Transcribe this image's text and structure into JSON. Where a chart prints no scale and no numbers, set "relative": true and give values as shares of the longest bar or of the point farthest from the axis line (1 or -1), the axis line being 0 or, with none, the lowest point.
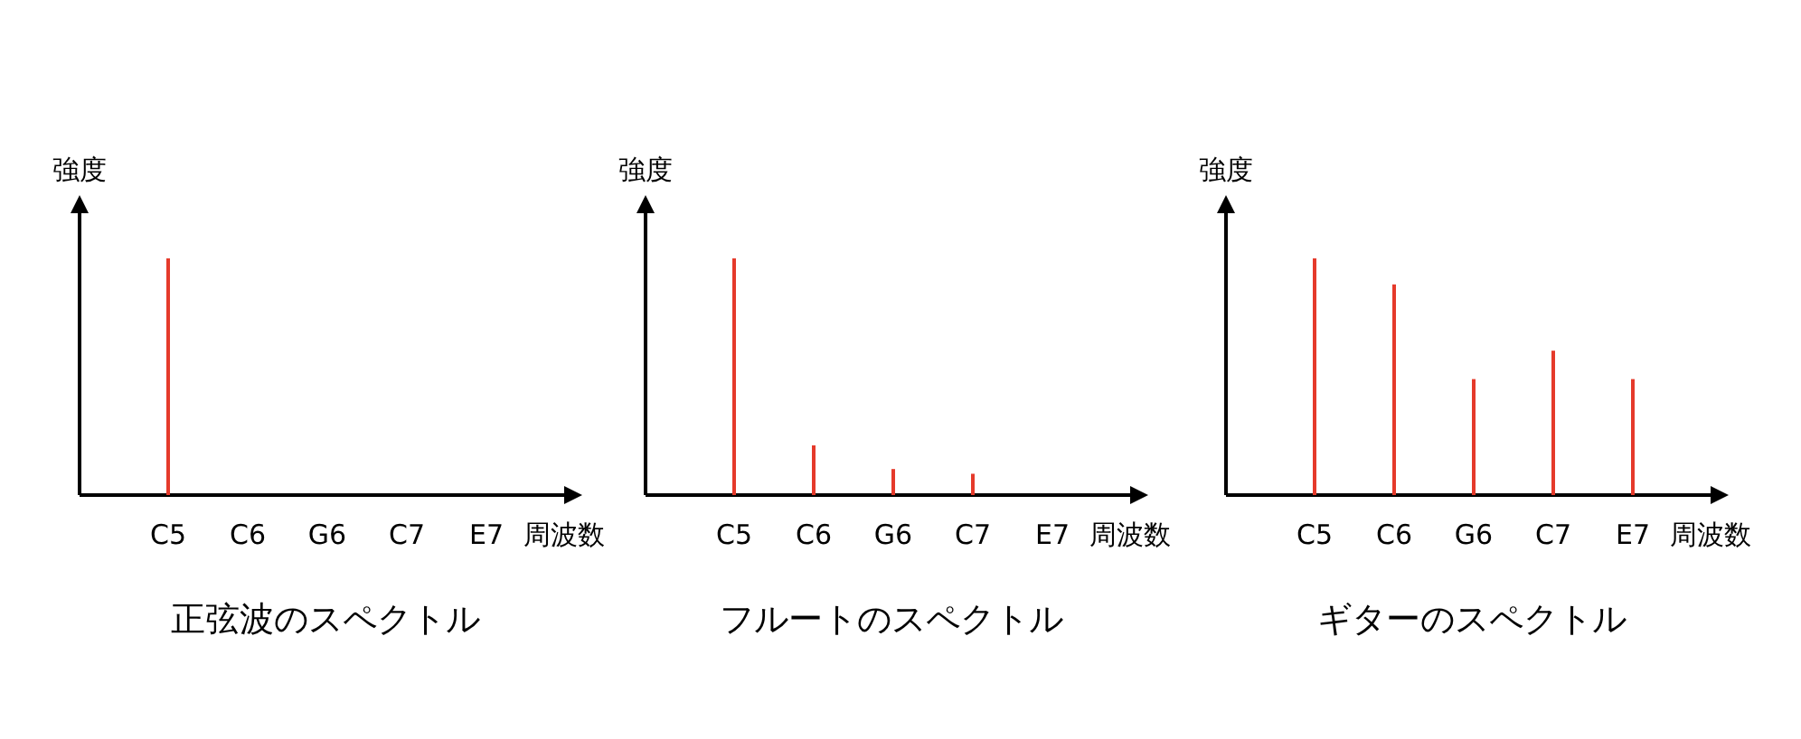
{
  "chart_data": [
    {
      "type": "bar",
      "relative": true,
      "title": "正弦波のスペクトル",
      "xlabel": "周波数",
      "ylabel": "強度",
      "categories": [
        "C5",
        "C6",
        "G6",
        "C7",
        "E7"
      ],
      "values": [
        1,
        null,
        null,
        null,
        null
      ],
      "color": "#e53a2b"
    },
    {
      "type": "bar",
      "relative": true,
      "title": "フルートのスペクトル",
      "xlabel": "周波数",
      "ylabel": "強度",
      "categories": [
        "C5",
        "C6",
        "G6",
        "C7",
        "E7"
      ],
      "values": [
        1,
        0.21,
        0.11,
        0.09,
        null
      ],
      "color": "#e53a2b"
    },
    {
      "type": "bar",
      "relative": true,
      "title": "ギターのスペクトル",
      "xlabel": "周波数",
      "ylabel": "強度",
      "categories": [
        "C5",
        "C6",
        "G6",
        "C7",
        "E7"
      ],
      "values": [
        1,
        0.89,
        0.49,
        0.61,
        0.49
      ],
      "color": "#e53a2b"
    }
  ]
}
